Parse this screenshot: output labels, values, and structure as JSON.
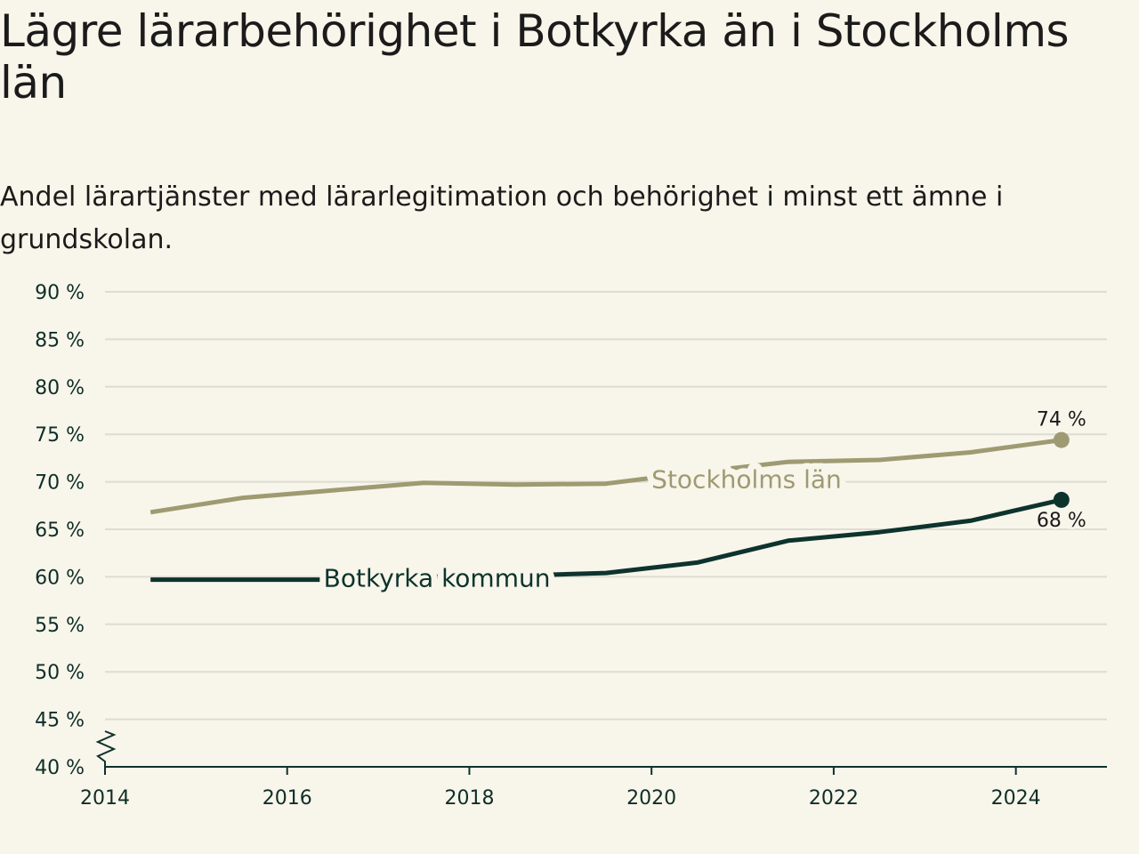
{
  "title": "Lägre lärarbehörighet i Botkyrka än i Stockholms län",
  "subtitle": "Andel lärartjänster med lärarlegitimation och behörighet i minst ett ämne i grundskolan.",
  "colors": {
    "background": "#f8f5ea",
    "stockholm": "#9e9a72",
    "botkyrka": "#0d332d",
    "grid": "#dddcd4",
    "axis": "#0d332d"
  },
  "chart_data": {
    "type": "line",
    "x_ticks": [
      "2014",
      "2016",
      "2018",
      "2020",
      "2022",
      "2024"
    ],
    "y_ticks": [
      "40 %",
      "45 %",
      "50 %",
      "55 %",
      "60 %",
      "65 %",
      "70 %",
      "75 %",
      "80 %",
      "85 %",
      "90 %"
    ],
    "xlim": [
      2014,
      2025
    ],
    "ylim": [
      40,
      90
    ],
    "axis_break": true,
    "grid": true,
    "series": [
      {
        "name": "Stockholms län",
        "color": "#9e9a72",
        "x": [
          2014.5,
          2015.5,
          2016.5,
          2017.5,
          2018.5,
          2019.5,
          2020.5,
          2021.5,
          2022.5,
          2023.5,
          2024.5
        ],
        "values": [
          66.8,
          68.3,
          69.1,
          69.9,
          69.7,
          69.8,
          71.0,
          72.1,
          72.3,
          73.1,
          74.4
        ],
        "end_label": "74 %"
      },
      {
        "name": "Botkyrka kommun",
        "color": "#0d332d",
        "x": [
          2014.5,
          2015.5,
          2016.5,
          2017.5,
          2018.5,
          2019.5,
          2020.5,
          2021.5,
          2022.5,
          2023.5,
          2024.5
        ],
        "values": [
          59.7,
          59.7,
          59.7,
          60.0,
          60.1,
          60.4,
          61.5,
          63.8,
          64.7,
          65.9,
          68.1
        ],
        "end_label": "68 %"
      }
    ]
  }
}
